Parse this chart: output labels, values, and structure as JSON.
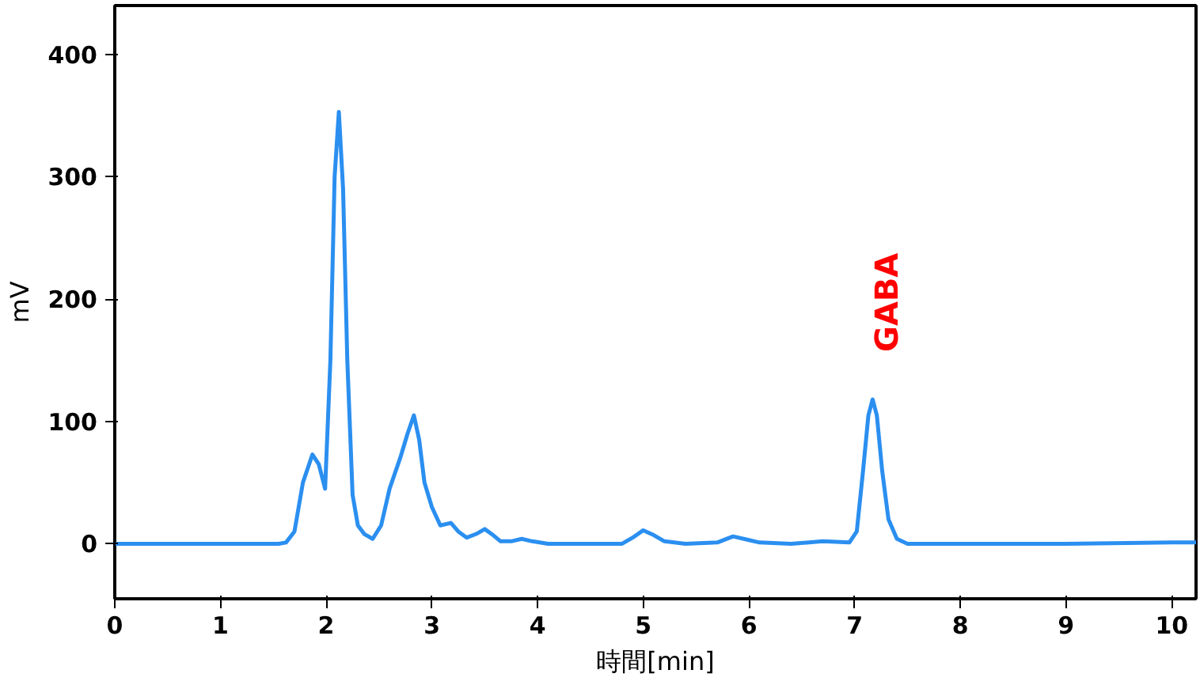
{
  "chart_data": {
    "type": "line",
    "xlabel": "時間[min]",
    "ylabel": "mV",
    "xlim": [
      0,
      10.23
    ],
    "ylim": [
      -45,
      440
    ],
    "xticks": [
      0,
      1,
      2,
      3,
      4,
      5,
      6,
      7,
      8,
      9,
      10
    ],
    "yticks": [
      0,
      100,
      200,
      300,
      400
    ],
    "grid": false,
    "marker": "none",
    "line_style": "solid",
    "annotations": [
      {
        "text": "GABA",
        "x": 7.17,
        "y": 118
      }
    ],
    "series": [
      {
        "color": "#2b8ff0",
        "x": [
          0,
          0.5,
          1.0,
          1.4,
          1.55,
          1.62,
          1.7,
          1.78,
          1.87,
          1.93,
          1.99,
          2.04,
          2.08,
          2.12,
          2.16,
          2.2,
          2.25,
          2.3,
          2.36,
          2.44,
          2.52,
          2.6,
          2.7,
          2.77,
          2.83,
          2.88,
          2.93,
          3.0,
          3.08,
          3.18,
          3.25,
          3.33,
          3.42,
          3.5,
          3.58,
          3.65,
          3.75,
          3.85,
          3.95,
          4.1,
          4.5,
          4.8,
          4.9,
          5.0,
          5.1,
          5.2,
          5.4,
          5.7,
          5.85,
          6.0,
          6.1,
          6.4,
          6.7,
          6.95,
          7.02,
          7.08,
          7.13,
          7.17,
          7.21,
          7.26,
          7.32,
          7.4,
          7.5,
          8,
          9,
          10,
          10.23
        ],
        "values": [
          0,
          0,
          0,
          0,
          0,
          1,
          10,
          50,
          73,
          65,
          45,
          150,
          300,
          353,
          290,
          150,
          40,
          15,
          8,
          4,
          15,
          45,
          70,
          90,
          105,
          85,
          50,
          30,
          15,
          17,
          10,
          5,
          8,
          12,
          7,
          2,
          2,
          4,
          2,
          0,
          0,
          0,
          5,
          11,
          7,
          2,
          0,
          1,
          6,
          3,
          1,
          0,
          2,
          1,
          10,
          60,
          105,
          118,
          105,
          60,
          20,
          4,
          0,
          0,
          0,
          1,
          1
        ]
      }
    ]
  }
}
